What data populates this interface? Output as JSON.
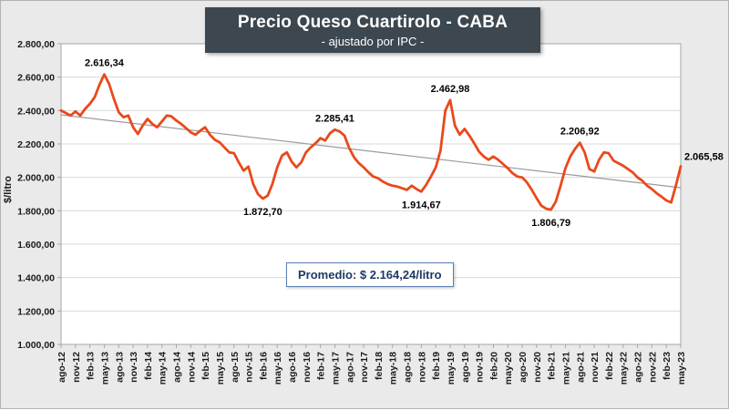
{
  "colors": {
    "background": "#EAEAEA",
    "plot_bg": "#FFFFFF",
    "grid": "#D9D9D9",
    "plot_border": "#A6A6A6",
    "line": "#E9491B",
    "trend": "#9A9A9A",
    "title_bg": "#3D474F",
    "title_text": "#FFFFFF",
    "average_border": "#5B7FB5",
    "average_text": "#1F3864",
    "tick_text": "#1A1A1A"
  },
  "chart_data": {
    "type": "line",
    "title": "Precio Queso Cuartirolo - CABA",
    "subtitle": "- ajustado por IPC -",
    "ylabel": "$/litro",
    "xlabel": "",
    "ylim": [
      1000,
      2800
    ],
    "grid": "horizontal",
    "legend": "none",
    "x_start": "ago-12",
    "x_end": "may-23",
    "x_step": "1 month",
    "xtick_every": 3,
    "xtick_labels": [
      "ago-12",
      "nov-12",
      "feb-13",
      "may-13",
      "ago-13",
      "nov-13",
      "feb-14",
      "may-14",
      "ago-14",
      "nov-14",
      "feb-15",
      "may-15",
      "ago-15",
      "nov-15",
      "feb-16",
      "may-16",
      "ago-16",
      "nov-16",
      "feb-17",
      "may-17",
      "ago-17",
      "nov-17",
      "feb-18",
      "may-18",
      "ago-18",
      "nov-18",
      "feb-19",
      "may-19",
      "ago-19",
      "nov-19",
      "feb-20",
      "may-20",
      "ago-20",
      "nov-20",
      "feb-21",
      "may-21",
      "ago-21",
      "nov-21",
      "feb-22",
      "may-22",
      "ago-22",
      "nov-22",
      "feb-23",
      "may-23"
    ],
    "yticks": [
      {
        "value": 2800,
        "label": "2.800,00"
      },
      {
        "value": 2600,
        "label": "2.600,00"
      },
      {
        "value": 2400,
        "label": "2.400,00"
      },
      {
        "value": 2200,
        "label": "2.200,00"
      },
      {
        "value": 2000,
        "label": "2.000,00"
      },
      {
        "value": 1800,
        "label": "1.800,00"
      },
      {
        "value": 1600,
        "label": "1.600,00"
      },
      {
        "value": 1400,
        "label": "1.400,00"
      },
      {
        "value": 1200,
        "label": "1.200,00"
      },
      {
        "value": 1000,
        "label": "1.000,00"
      }
    ],
    "values": [
      2400,
      2385,
      2370,
      2395,
      2370,
      2410,
      2440,
      2480,
      2555,
      2616.34,
      2560,
      2470,
      2390,
      2360,
      2370,
      2300,
      2260,
      2310,
      2350,
      2320,
      2300,
      2335,
      2370,
      2365,
      2340,
      2320,
      2295,
      2270,
      2255,
      2280,
      2300,
      2255,
      2225,
      2210,
      2180,
      2150,
      2145,
      2090,
      2040,
      2065,
      1960,
      1900,
      1872.7,
      1890,
      1960,
      2060,
      2130,
      2150,
      2095,
      2060,
      2090,
      2150,
      2180,
      2205,
      2235,
      2220,
      2265,
      2285.41,
      2275,
      2250,
      2175,
      2120,
      2085,
      2060,
      2030,
      2005,
      1995,
      1975,
      1960,
      1950,
      1945,
      1935,
      1925,
      1950,
      1930,
      1914.67,
      1955,
      2005,
      2060,
      2160,
      2400,
      2462.98,
      2310,
      2255,
      2290,
      2250,
      2205,
      2155,
      2125,
      2105,
      2125,
      2105,
      2080,
      2055,
      2025,
      2005,
      2000,
      1970,
      1925,
      1875,
      1830,
      1812,
      1806.79,
      1855,
      1950,
      2055,
      2125,
      2170,
      2206.92,
      2150,
      2050,
      2035,
      2105,
      2150,
      2145,
      2100,
      2085,
      2070,
      2050,
      2030,
      2000,
      1980,
      1950,
      1930,
      1905,
      1885,
      1862,
      1850,
      1950,
      2065.58
    ],
    "trend_line": {
      "start": 2374,
      "end": 1938
    },
    "average_label": "Promedio: $ 2.164,24/litro",
    "average_value": 2164.24,
    "annotations": [
      {
        "index": 9,
        "value": 2616.34,
        "label": "2.616,34",
        "placement": "above"
      },
      {
        "index": 42,
        "value": 1872.7,
        "label": "1.872,70",
        "placement": "below"
      },
      {
        "index": 57,
        "value": 2285.41,
        "label": "2.285,41",
        "placement": "above"
      },
      {
        "index": 75,
        "value": 1914.67,
        "label": "1.914,67",
        "placement": "below"
      },
      {
        "index": 81,
        "value": 2462.98,
        "label": "2.462,98",
        "placement": "above"
      },
      {
        "index": 102,
        "value": 1806.79,
        "label": "1.806,79",
        "placement": "below"
      },
      {
        "index": 108,
        "value": 2206.92,
        "label": "2.206,92",
        "placement": "above"
      },
      {
        "index": 129,
        "value": 2065.58,
        "label": "2.065,58",
        "placement": "right"
      }
    ]
  }
}
